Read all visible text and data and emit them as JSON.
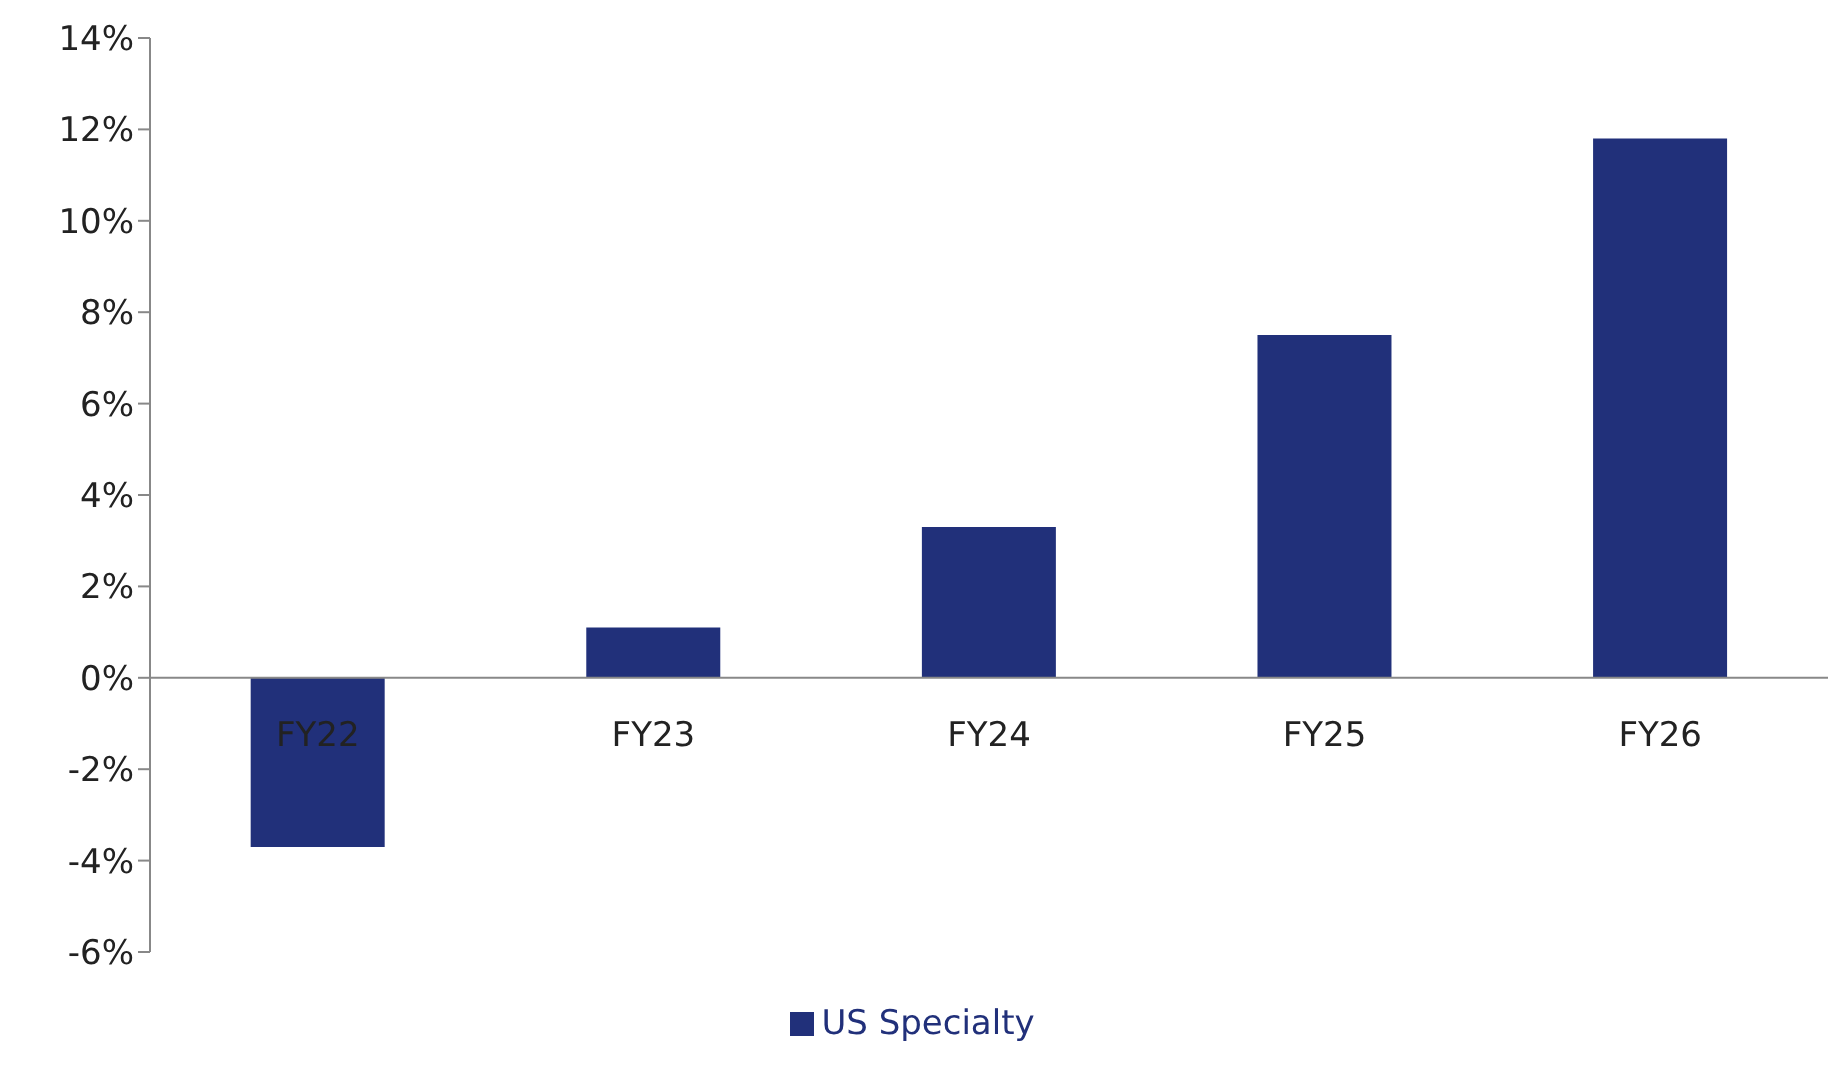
{
  "chart_data": {
    "type": "bar",
    "categories": [
      "FY22",
      "FY23",
      "FY24",
      "FY25",
      "FY26"
    ],
    "series": [
      {
        "name": "US Specialty",
        "color": "#21307a",
        "values": [
          -3.7,
          1.1,
          3.3,
          7.5,
          11.8
        ]
      }
    ],
    "ylim": [
      -6,
      14
    ],
    "yticks": [
      {
        "value": -6,
        "label": "-6%"
      },
      {
        "value": -4,
        "label": "-4%"
      },
      {
        "value": -2,
        "label": "-2%"
      },
      {
        "value": 0,
        "label": "0%"
      },
      {
        "value": 2,
        "label": "2%"
      },
      {
        "value": 4,
        "label": "4%"
      },
      {
        "value": 6,
        "label": "6%"
      },
      {
        "value": 8,
        "label": "8%"
      },
      {
        "value": 10,
        "label": "10%"
      },
      {
        "value": 12,
        "label": "12%"
      },
      {
        "value": 14,
        "label": "14%"
      }
    ],
    "legend": "bottom"
  }
}
